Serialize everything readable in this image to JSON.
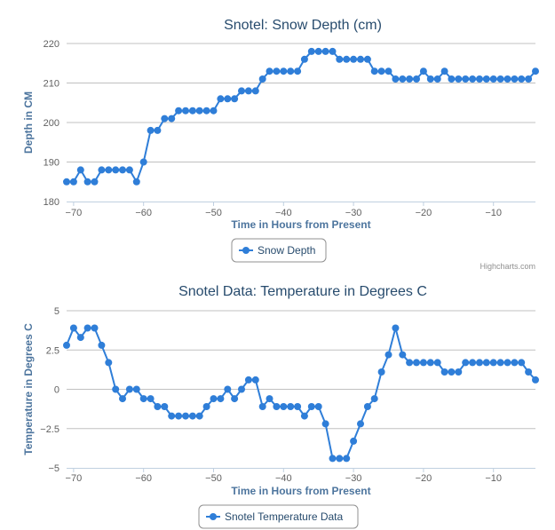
{
  "colors": {
    "series": "#2f7ed8",
    "grid": "#c0c0c0",
    "axis": "#c0d0e0",
    "title": "#274b6d",
    "axis_title": "#4d759e"
  },
  "credits": "Highcharts.com",
  "chart_data": [
    {
      "type": "line",
      "title": "Snotel: Snow Depth (cm)",
      "xlabel": "Time in Hours from Present",
      "ylabel": "Depth in CM",
      "xlim": [
        -71,
        -4
      ],
      "ylim": [
        180,
        220
      ],
      "xticks": [
        -70,
        -60,
        -50,
        -40,
        -30,
        -20,
        -10
      ],
      "yticks": [
        180,
        190,
        200,
        210,
        220
      ],
      "ytick_labels": [
        "180",
        "190",
        "200",
        "210",
        "220"
      ],
      "legend": "Snow Depth",
      "series": [
        {
          "name": "Snow Depth",
          "x": [
            -71,
            -70,
            -69,
            -68,
            -67,
            -66,
            -65,
            -64,
            -63,
            -62,
            -61,
            -60,
            -59,
            -58,
            -57,
            -56,
            -55,
            -54,
            -53,
            -52,
            -51,
            -50,
            -49,
            -48,
            -47,
            -46,
            -45,
            -44,
            -43,
            -42,
            -41,
            -40,
            -39,
            -38,
            -37,
            -36,
            -35,
            -34,
            -33,
            -32,
            -31,
            -30,
            -29,
            -28,
            -27,
            -26,
            -25,
            -24,
            -23,
            -22,
            -21,
            -20,
            -19,
            -18,
            -17,
            -16,
            -15,
            -14,
            -13,
            -12,
            -11,
            -10,
            -9,
            -8,
            -7,
            -6,
            -5,
            -4
          ],
          "values": [
            185,
            185,
            188,
            185,
            185,
            188,
            188,
            188,
            188,
            188,
            185,
            190,
            198,
            198,
            201,
            201,
            203,
            203,
            203,
            203,
            203,
            203,
            206,
            206,
            206,
            208,
            208,
            208,
            211,
            213,
            213,
            213,
            213,
            213,
            216,
            218,
            218,
            218,
            218,
            216,
            216,
            216,
            216,
            216,
            213,
            213,
            213,
            211,
            211,
            211,
            211,
            213,
            211,
            211,
            213,
            211,
            211,
            211,
            211,
            211,
            211,
            211,
            211,
            211,
            211,
            211,
            211,
            213
          ]
        }
      ]
    },
    {
      "type": "line",
      "title": "Snotel Data: Temperature in Degrees C",
      "xlabel": "Time in Hours from Present",
      "ylabel": "Temperature in Degrees C",
      "xlim": [
        -71,
        -4
      ],
      "ylim": [
        -5,
        5
      ],
      "xticks": [
        -70,
        -60,
        -50,
        -40,
        -30,
        -20,
        -10
      ],
      "yticks": [
        -5,
        -2.5,
        0,
        2.5,
        5
      ],
      "ytick_labels": [
        "−5",
        "−2.5",
        "0",
        "2.5",
        "5"
      ],
      "legend": "Snotel Temperature Data",
      "series": [
        {
          "name": "Snotel Temperature Data",
          "x": [
            -71,
            -70,
            -69,
            -68,
            -67,
            -66,
            -65,
            -64,
            -63,
            -62,
            -61,
            -60,
            -59,
            -58,
            -57,
            -56,
            -55,
            -54,
            -53,
            -52,
            -51,
            -50,
            -49,
            -48,
            -47,
            -46,
            -45,
            -44,
            -43,
            -42,
            -41,
            -40,
            -39,
            -38,
            -37,
            -36,
            -35,
            -34,
            -33,
            -32,
            -31,
            -30,
            -29,
            -28,
            -27,
            -26,
            -25,
            -24,
            -23,
            -22,
            -21,
            -20,
            -19,
            -18,
            -17,
            -16,
            -15,
            -14,
            -13,
            -12,
            -11,
            -10,
            -9,
            -8,
            -7,
            -6,
            -5,
            -4
          ],
          "values": [
            2.8,
            3.9,
            3.3,
            3.9,
            3.9,
            2.8,
            1.7,
            0,
            -0.6,
            0,
            0,
            -0.6,
            -0.6,
            -1.1,
            -1.1,
            -1.7,
            -1.7,
            -1.7,
            -1.7,
            -1.7,
            -1.1,
            -0.6,
            -0.6,
            0,
            -0.6,
            0,
            0.6,
            0.6,
            -1.1,
            -0.6,
            -1.1,
            -1.1,
            -1.1,
            -1.1,
            -1.7,
            -1.1,
            -1.1,
            -2.2,
            -4.4,
            -4.4,
            -4.4,
            -3.3,
            -2.2,
            -1.1,
            -0.6,
            1.1,
            2.2,
            3.9,
            2.2,
            1.7,
            1.7,
            1.7,
            1.7,
            1.7,
            1.1,
            1.1,
            1.1,
            1.7,
            1.7,
            1.7,
            1.7,
            1.7,
            1.7,
            1.7,
            1.7,
            1.7,
            1.1,
            0.6
          ]
        }
      ]
    }
  ]
}
